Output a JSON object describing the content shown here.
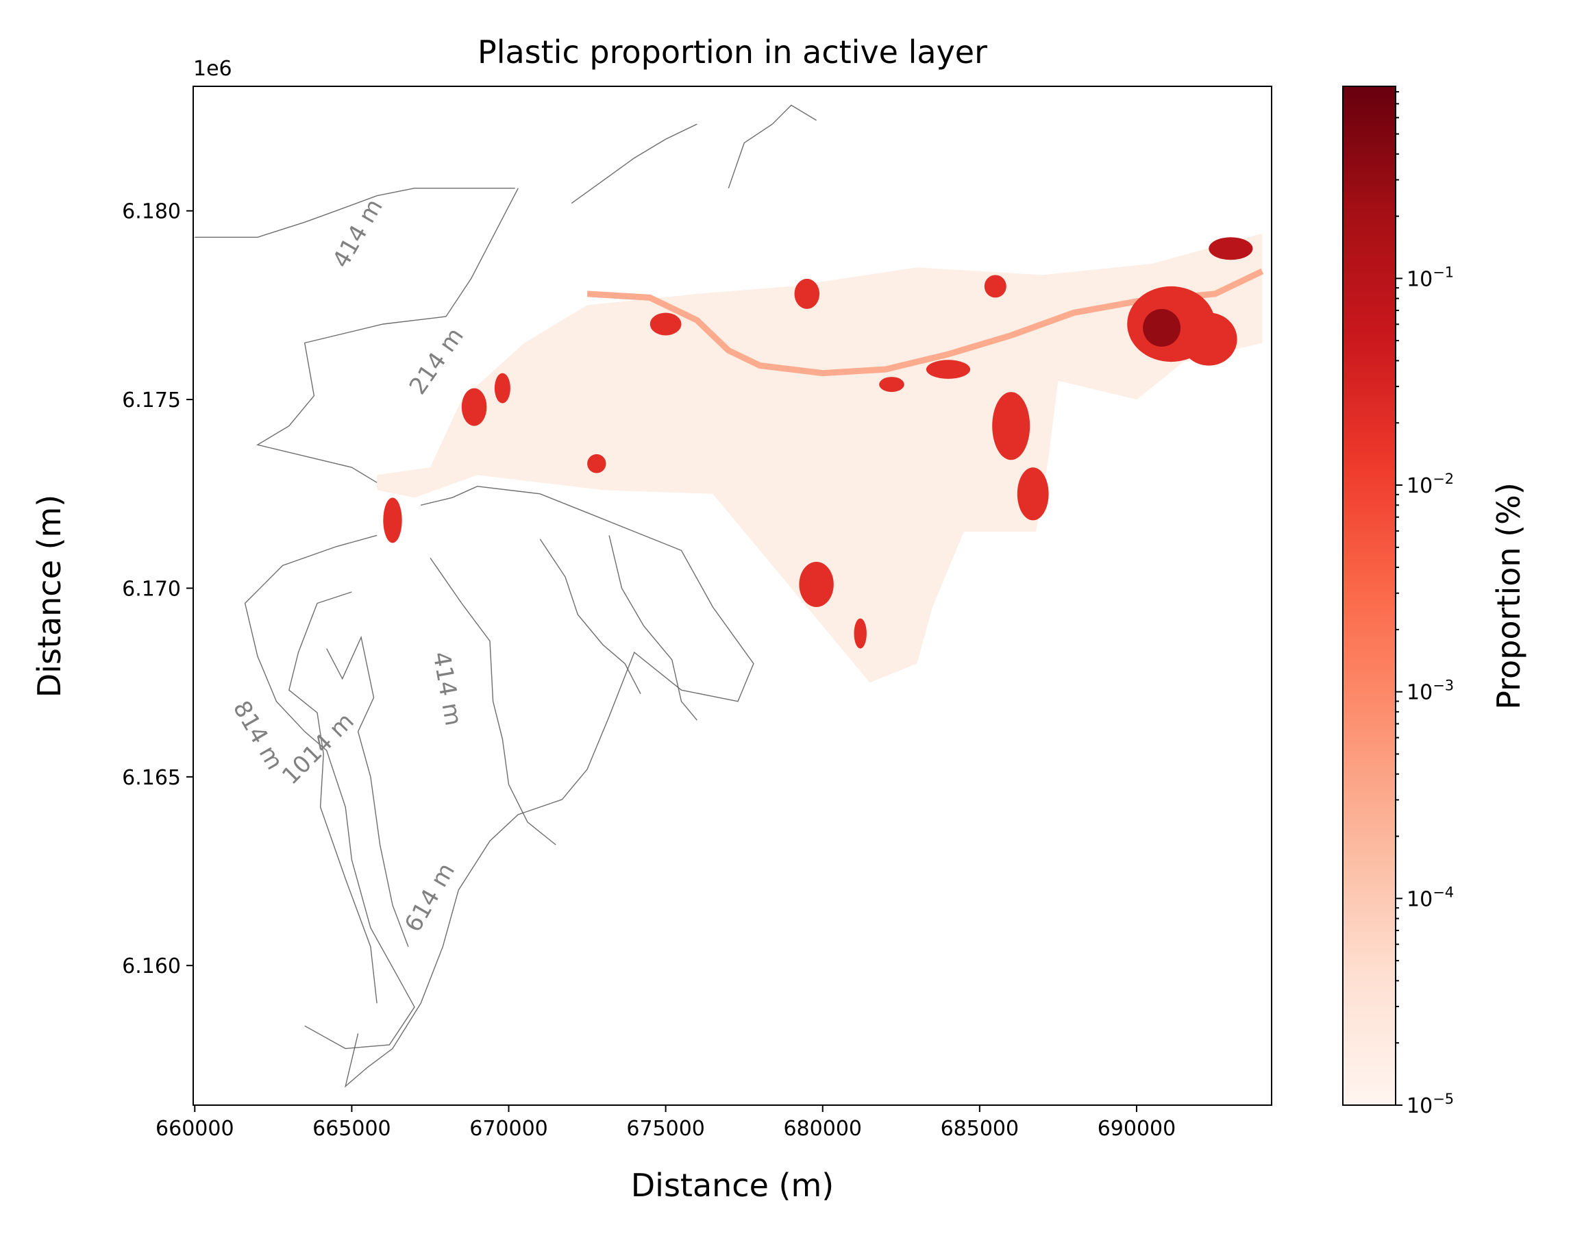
{
  "chart_data": {
    "type": "heatmap",
    "title": "Plastic proportion in active layer",
    "xlabel": "Distance (m)",
    "ylabel": "Distance (m)",
    "y_offset_label": "1e6",
    "xlim": [
      659950,
      694300
    ],
    "ylim": [
      6156300,
      6183300
    ],
    "x_ticks": [
      660000,
      665000,
      670000,
      675000,
      680000,
      685000,
      690000
    ],
    "x_tick_labels": [
      "660000",
      "665000",
      "670000",
      "675000",
      "680000",
      "685000",
      "690000"
    ],
    "y_ticks": [
      6160000,
      6165000,
      6170000,
      6175000,
      6180000
    ],
    "y_tick_labels": [
      "6.160",
      "6.165",
      "6.170",
      "6.175",
      "6.180"
    ],
    "colorbar": {
      "label": "Proportion (%)",
      "scale": "log",
      "range": [
        1e-05,
        0.85
      ],
      "tick_values": [
        1e-05,
        0.0001,
        0.001,
        0.01,
        0.1
      ],
      "tick_base": "10",
      "tick_exponents": [
        "−5",
        "−4",
        "−3",
        "−2",
        "−1"
      ],
      "colormap": [
        "#fff5f0",
        "#fee0d2",
        "#fcbba1",
        "#fc9272",
        "#fb6a4a",
        "#ef3b2c",
        "#cb181d",
        "#a50f15",
        "#67000d"
      ]
    },
    "contour_labels": [
      {
        "text": "414 m",
        "x": 665400,
        "y": 6179300
      },
      {
        "text": "214 m",
        "x": 667900,
        "y": 6175900
      },
      {
        "text": "414 m",
        "x": 667800,
        "y": 6167300
      },
      {
        "text": "814 m",
        "x": 661800,
        "y": 6166000
      },
      {
        "text": "1014 m",
        "x": 664100,
        "y": 6165600
      },
      {
        "text": "614 m",
        "x": 667700,
        "y": 6161700
      }
    ],
    "background_region": {
      "value": 1e-05,
      "outline": [
        [
          665800,
          6173000
        ],
        [
          667500,
          6173200
        ],
        [
          668500,
          6175000
        ],
        [
          670500,
          6176500
        ],
        [
          672500,
          6177500
        ],
        [
          676000,
          6177800
        ],
        [
          679000,
          6178000
        ],
        [
          683000,
          6178500
        ],
        [
          687000,
          6178300
        ],
        [
          690500,
          6178600
        ],
        [
          694000,
          6179400
        ],
        [
          694000,
          6176500
        ],
        [
          691500,
          6176000
        ],
        [
          690000,
          6175000
        ],
        [
          687500,
          6175500
        ],
        [
          687200,
          6173500
        ],
        [
          686800,
          6171500
        ],
        [
          684500,
          6171500
        ],
        [
          684000,
          6170500
        ],
        [
          683500,
          6169500
        ],
        [
          683000,
          6168000
        ],
        [
          681500,
          6167500
        ],
        [
          679500,
          6169500
        ],
        [
          678000,
          6171000
        ],
        [
          676500,
          6172500
        ],
        [
          673000,
          6172600
        ],
        [
          669000,
          6173000
        ],
        [
          667000,
          6172400
        ],
        [
          665800,
          6172600
        ]
      ]
    },
    "river": {
      "value": 0.0003,
      "points": [
        [
          672500,
          6177800
        ],
        [
          674500,
          6177700
        ],
        [
          676000,
          6177100
        ],
        [
          677000,
          6176300
        ],
        [
          678000,
          6175900
        ],
        [
          680000,
          6175700
        ],
        [
          682000,
          6175800
        ],
        [
          684000,
          6176200
        ],
        [
          686000,
          6176700
        ],
        [
          688000,
          6177300
        ],
        [
          690000,
          6177600
        ],
        [
          692500,
          6177800
        ],
        [
          694000,
          6178400
        ]
      ]
    },
    "hotspots": [
      {
        "x": 691100,
        "y": 6177000,
        "rx": 1400,
        "ry": 1000,
        "value": 0.02
      },
      {
        "x": 692300,
        "y": 6176600,
        "rx": 900,
        "ry": 700,
        "value": 0.02
      },
      {
        "x": 690800,
        "y": 6176900,
        "rx": 600,
        "ry": 500,
        "value": 0.3
      },
      {
        "x": 693000,
        "y": 6179000,
        "rx": 700,
        "ry": 300,
        "value": 0.1
      },
      {
        "x": 686000,
        "y": 6174300,
        "rx": 600,
        "ry": 900,
        "value": 0.02
      },
      {
        "x": 686700,
        "y": 6172500,
        "rx": 500,
        "ry": 700,
        "value": 0.02
      },
      {
        "x": 679800,
        "y": 6170100,
        "rx": 550,
        "ry": 600,
        "value": 0.02
      },
      {
        "x": 681200,
        "y": 6168800,
        "rx": 200,
        "ry": 400,
        "value": 0.02
      },
      {
        "x": 668900,
        "y": 6174800,
        "rx": 400,
        "ry": 500,
        "value": 0.02
      },
      {
        "x": 669800,
        "y": 6175300,
        "rx": 250,
        "ry": 400,
        "value": 0.02
      },
      {
        "x": 666300,
        "y": 6171800,
        "rx": 300,
        "ry": 600,
        "value": 0.02
      },
      {
        "x": 672800,
        "y": 6173300,
        "rx": 300,
        "ry": 250,
        "value": 0.02
      },
      {
        "x": 679500,
        "y": 6177800,
        "rx": 400,
        "ry": 400,
        "value": 0.02
      },
      {
        "x": 675000,
        "y": 6177000,
        "rx": 500,
        "ry": 300,
        "value": 0.02
      },
      {
        "x": 684000,
        "y": 6175800,
        "rx": 700,
        "ry": 250,
        "value": 0.02
      },
      {
        "x": 682200,
        "y": 6175400,
        "rx": 400,
        "ry": 200,
        "value": 0.02
      },
      {
        "x": 685500,
        "y": 6178000,
        "rx": 350,
        "ry": 300,
        "value": 0.02
      }
    ],
    "contours": [
      [
        [
          660000,
          6179300
        ],
        [
          662000,
          6179300
        ],
        [
          663500,
          6179700
        ],
        [
          664500,
          6180000
        ],
        [
          665800,
          6180400
        ],
        [
          667000,
          6180600
        ],
        [
          668800,
          6180600
        ],
        [
          670200,
          6180600
        ]
      ],
      [
        [
          672000,
          6180200
        ],
        [
          673000,
          6180800
        ],
        [
          674000,
          6181400
        ],
        [
          675000,
          6181900
        ],
        [
          676000,
          6182300
        ]
      ],
      [
        [
          677000,
          6180600
        ],
        [
          677500,
          6181800
        ],
        [
          678400,
          6182300
        ],
        [
          679000,
          6182800
        ],
        [
          679800,
          6182400
        ]
      ],
      [
        [
          670300,
          6180600
        ],
        [
          668800,
          6178200
        ],
        [
          668000,
          6177200
        ],
        [
          666000,
          6177000
        ],
        [
          663500,
          6176500
        ],
        [
          663800,
          6175100
        ],
        [
          663000,
          6174300
        ],
        [
          662000,
          6173800
        ],
        [
          665000,
          6173200
        ],
        [
          665800,
          6172800
        ]
      ],
      [
        [
          667200,
          6172200
        ],
        [
          668200,
          6172400
        ],
        [
          669000,
          6172700
        ],
        [
          671000,
          6172500
        ],
        [
          672500,
          6172000
        ],
        [
          674000,
          6171500
        ],
        [
          675500,
          6171000
        ],
        [
          676500,
          6169500
        ],
        [
          677800,
          6168000
        ],
        [
          677300,
          6167000
        ],
        [
          675500,
          6167300
        ],
        [
          674000,
          6168300
        ],
        [
          673200,
          6166600
        ],
        [
          672500,
          6165200
        ],
        [
          671700,
          6164400
        ],
        [
          670300,
          6164000
        ],
        [
          669400,
          6163300
        ],
        [
          668400,
          6162000
        ],
        [
          667900,
          6160500
        ],
        [
          667200,
          6159000
        ],
        [
          666300,
          6157800
        ],
        [
          665500,
          6157300
        ],
        [
          664800,
          6156800
        ],
        [
          665200,
          6158200
        ]
      ],
      [
        [
          665800,
          6171400
        ],
        [
          664500,
          6171100
        ],
        [
          662800,
          6170600
        ],
        [
          661600,
          6169600
        ],
        [
          662000,
          6168200
        ],
        [
          662600,
          6167000
        ],
        [
          663500,
          6166200
        ],
        [
          664200,
          6165700
        ],
        [
          664800,
          6164200
        ],
        [
          665000,
          6162800
        ],
        [
          665600,
          6161000
        ],
        [
          666400,
          6159800
        ],
        [
          667000,
          6158900
        ],
        [
          666200,
          6157900
        ],
        [
          664800,
          6157800
        ],
        [
          663500,
          6158400
        ]
      ],
      [
        [
          665000,
          6169900
        ],
        [
          663900,
          6169600
        ],
        [
          663300,
          6168300
        ],
        [
          663000,
          6167300
        ],
        [
          663900,
          6166700
        ],
        [
          664100,
          6165600
        ],
        [
          664000,
          6164200
        ],
        [
          664800,
          6162300
        ],
        [
          665600,
          6160500
        ],
        [
          665800,
          6159000
        ]
      ],
      [
        [
          664200,
          6168400
        ],
        [
          664700,
          6167600
        ],
        [
          665300,
          6168700
        ],
        [
          665700,
          6167100
        ],
        [
          665200,
          6166200
        ],
        [
          665600,
          6165000
        ],
        [
          665900,
          6163200
        ],
        [
          666300,
          6161600
        ],
        [
          666800,
          6160500
        ]
      ],
      [
        [
          667500,
          6170800
        ],
        [
          668500,
          6169600
        ],
        [
          669400,
          6168600
        ],
        [
          669500,
          6167000
        ],
        [
          669800,
          6166000
        ],
        [
          670000,
          6164800
        ],
        [
          670600,
          6163800
        ],
        [
          671500,
          6163200
        ]
      ],
      [
        [
          671000,
          6171300
        ],
        [
          671800,
          6170300
        ],
        [
          672200,
          6169300
        ],
        [
          673000,
          6168500
        ],
        [
          673700,
          6168000
        ],
        [
          674200,
          6167200
        ]
      ],
      [
        [
          673200,
          6171400
        ],
        [
          673600,
          6170000
        ],
        [
          674300,
          6169000
        ],
        [
          675200,
          6168100
        ],
        [
          675500,
          6167000
        ],
        [
          676000,
          6166500
        ]
      ]
    ]
  }
}
